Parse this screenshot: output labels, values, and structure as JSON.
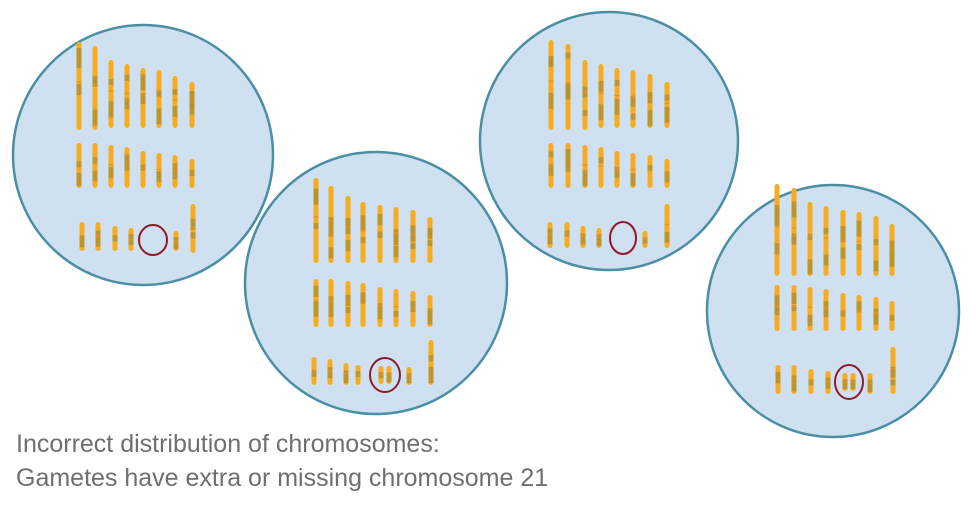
{
  "caption": {
    "line1": "Incorrect distribution of chromosomes:",
    "line2": "Gametes have extra or missing chromosome 21"
  },
  "colors": {
    "cell_fill": "#cfe0f0",
    "cell_stroke": "#4b8fa4",
    "chromosome": "#f7ab1e",
    "chromosome_band": "#b78f2a",
    "marker_ring": "#8e1b27",
    "caption_text": "#6f6f6f"
  },
  "cells": [
    {
      "id": "cell-1",
      "chromosome_21_count": 0
    },
    {
      "id": "cell-2",
      "chromosome_21_count": 2
    },
    {
      "id": "cell-3",
      "chromosome_21_count": 0
    },
    {
      "id": "cell-4",
      "chromosome_21_count": 2
    }
  ]
}
